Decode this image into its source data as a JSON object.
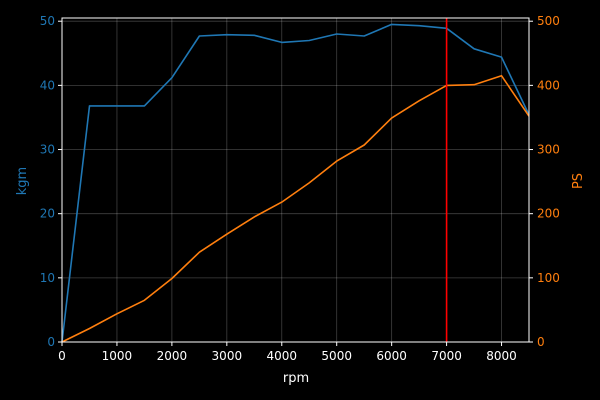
{
  "chart_data": {
    "type": "line",
    "xlabel": "rpm",
    "x_ticks": [
      0,
      1000,
      2000,
      3000,
      4000,
      5000,
      6000,
      7000,
      8000
    ],
    "xlim": [
      0,
      8500
    ],
    "grid": true,
    "left_axis": {
      "label": "kgm",
      "ylim": [
        0,
        50.5
      ],
      "ticks": [
        0,
        10,
        20,
        30,
        40,
        50
      ],
      "color": "#1f77b4"
    },
    "right_axis": {
      "label": "PS",
      "ylim": [
        0,
        505
      ],
      "ticks": [
        0,
        100,
        200,
        300,
        400,
        500
      ],
      "color": "#ff7f0e"
    },
    "series": [
      {
        "axis": "left",
        "color": "#1f77b4",
        "x": [
          0,
          500,
          1000,
          1500,
          2000,
          2500,
          3000,
          3500,
          4000,
          4500,
          5000,
          5500,
          6000,
          6500,
          7000,
          7500,
          8000,
          8500
        ],
        "y": [
          0,
          36.8,
          36.8,
          36.8,
          41.2,
          47.7,
          47.9,
          47.8,
          46.7,
          47.0,
          48.0,
          47.7,
          49.5,
          49.3,
          48.9,
          45.7,
          44.4,
          35.4
        ]
      },
      {
        "axis": "right",
        "color": "#ff7f0e",
        "x": [
          0,
          500,
          1000,
          1500,
          2000,
          2500,
          3000,
          3500,
          4000,
          4500,
          5000,
          5500,
          6000,
          6500,
          7000,
          7500,
          8000,
          8500
        ],
        "y": [
          0,
          21,
          44,
          65,
          99,
          140,
          168,
          195,
          218,
          248,
          282,
          307,
          349,
          376,
          400,
          401,
          415,
          352
        ]
      }
    ],
    "vline": {
      "x": 7000,
      "color": "#ff0000"
    }
  }
}
